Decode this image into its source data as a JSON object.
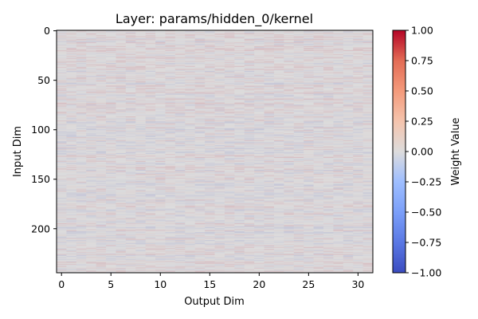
{
  "chart_data": {
    "type": "heatmap",
    "title": "Layer: params/hidden_0/kernel",
    "xlabel": "Output Dim",
    "ylabel": "Input Dim",
    "colorbar_label": "Weight Value",
    "colormap": "coolwarm",
    "shape": [
      245,
      32
    ],
    "xlim": [
      -0.5,
      31.5
    ],
    "ylim": [
      244.5,
      -0.5
    ],
    "x_ticks": [
      0,
      5,
      10,
      15,
      20,
      25,
      30
    ],
    "y_ticks": [
      0,
      50,
      100,
      150,
      200
    ],
    "x_tick_labels": [
      "0",
      "5",
      "10",
      "15",
      "20",
      "25",
      "30"
    ],
    "y_tick_labels": [
      "0",
      "50",
      "100",
      "150",
      "200"
    ],
    "vmin": -1.0,
    "vmax": 1.0,
    "colorbar_ticks": [
      1.0,
      0.75,
      0.5,
      0.25,
      0.0,
      -0.25,
      -0.5,
      -0.75,
      -1.0
    ],
    "colorbar_tick_labels": [
      "1.00",
      "0.75",
      "0.50",
      "0.25",
      "0.00",
      "−0.25",
      "−0.50",
      "−0.75",
      "−1.00"
    ],
    "value_range_approx": [
      -0.15,
      0.15
    ],
    "colors": {
      "low": "#3b4cc0",
      "mid": "#dddddd",
      "high": "#b40426"
    }
  }
}
